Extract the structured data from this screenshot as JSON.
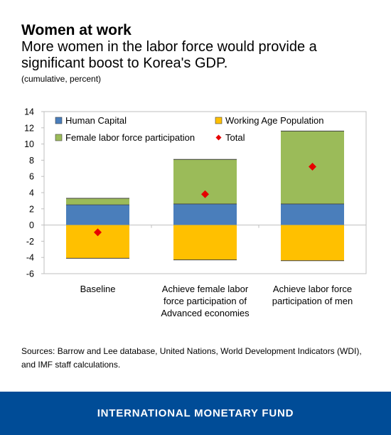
{
  "header": {
    "title": "Women at work",
    "subtitle": "More women in the labor force would provide a significant boost to Korea's GDP.",
    "units": "(cumulative, percent)"
  },
  "source_text": "Sources: Barrow and Lee database, United Nations, World Development Indicators (WDI), and IMF staff calculations.",
  "footer": {
    "brand": "INTERNATIONAL MONETARY FUND"
  },
  "colors": {
    "human_capital": "#4a7ebb",
    "working_age": "#ffc000",
    "female_lfp": "#9bbb59",
    "total": "#e60000"
  },
  "chart_data": {
    "type": "bar",
    "stacked": true,
    "categories": [
      "Baseline",
      "Achieve female labor force participation of Advanced economies",
      "Achieve labor force participation of men"
    ],
    "category_lines": [
      [
        "Baseline"
      ],
      [
        "Achieve female labor",
        "force participation of",
        "Advanced economies"
      ],
      [
        "Achieve labor force",
        "participation of men"
      ]
    ],
    "series": [
      {
        "name": "Human Capital",
        "values": [
          2.5,
          2.6,
          2.6
        ]
      },
      {
        "name": "Working Age Population",
        "values": [
          -4.1,
          -4.3,
          -4.4
        ]
      },
      {
        "name": "Female labor force participation",
        "values": [
          0.8,
          5.5,
          9.0
        ]
      }
    ],
    "total": {
      "name": "Total",
      "values": [
        -0.9,
        3.8,
        7.2
      ]
    },
    "ylim": [
      -6,
      14
    ],
    "yticks": [
      "14",
      "12",
      "10",
      "8",
      "6",
      "4",
      "2",
      "0",
      "-2",
      "-4",
      "-6"
    ],
    "grid": false,
    "legend": "top",
    "xlabel": "",
    "ylabel": ""
  }
}
